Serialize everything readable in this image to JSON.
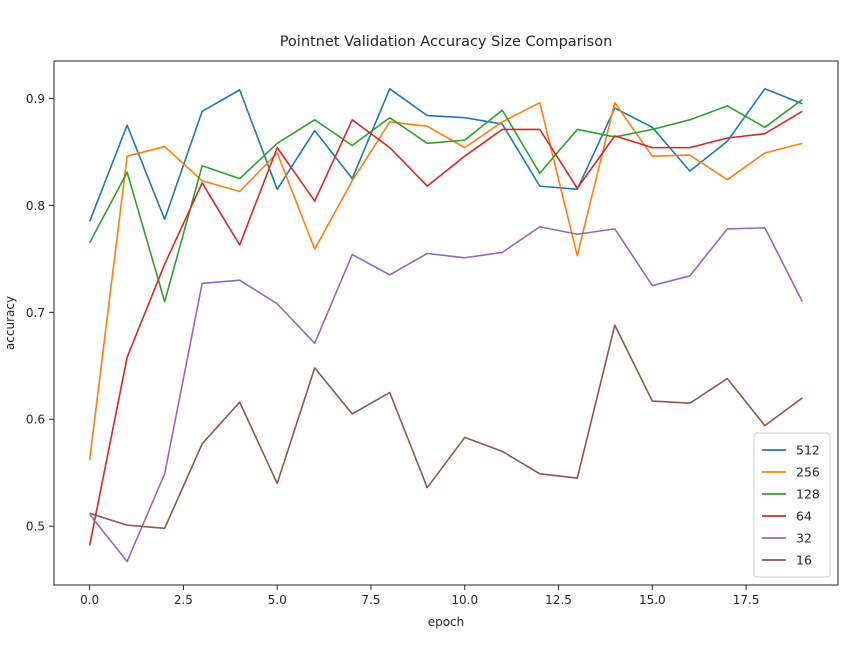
{
  "chart_data": {
    "type": "line",
    "title": "Pointnet Validation Accuracy Size Comparison",
    "xlabel": "epoch",
    "ylabel": "accuracy",
    "xlim": [
      -0.95,
      19.95
    ],
    "ylim": [
      0.445,
      0.935
    ],
    "xticks": [
      0.0,
      2.5,
      5.0,
      7.5,
      10.0,
      12.5,
      15.0,
      17.5
    ],
    "xtick_labels": [
      "0.0",
      "2.5",
      "5.0",
      "7.5",
      "10.0",
      "12.5",
      "15.0",
      "17.5"
    ],
    "yticks": [
      0.5,
      0.6,
      0.7,
      0.8,
      0.9
    ],
    "ytick_labels": [
      "0.5",
      "0.6",
      "0.7",
      "0.8",
      "0.9"
    ],
    "grid": false,
    "legend_position": "lower-right",
    "x": [
      0,
      1,
      2,
      3,
      4,
      5,
      6,
      7,
      8,
      9,
      10,
      11,
      12,
      13,
      14,
      15,
      16,
      17,
      18,
      19
    ],
    "series": [
      {
        "name": "512",
        "color": "#1f77b4",
        "values": [
          0.785,
          0.875,
          0.787,
          0.888,
          0.908,
          0.815,
          0.87,
          0.825,
          0.909,
          0.884,
          0.882,
          0.876,
          0.818,
          0.815,
          0.891,
          0.873,
          0.832,
          0.86,
          0.909,
          0.895
        ]
      },
      {
        "name": "256",
        "color": "#ff7f0e",
        "values": [
          0.562,
          0.846,
          0.855,
          0.823,
          0.813,
          0.849,
          0.759,
          0.823,
          0.878,
          0.874,
          0.854,
          0.878,
          0.896,
          0.753,
          0.896,
          0.846,
          0.847,
          0.824,
          0.849,
          0.858
        ]
      },
      {
        "name": "128",
        "color": "#2ca02c",
        "values": [
          0.765,
          0.831,
          0.71,
          0.837,
          0.825,
          0.858,
          0.88,
          0.856,
          0.882,
          0.858,
          0.861,
          0.889,
          0.83,
          0.871,
          0.864,
          0.871,
          0.88,
          0.893,
          0.873,
          0.899
        ]
      },
      {
        "name": "64",
        "color": "#d62728",
        "values": [
          0.482,
          0.658,
          0.745,
          0.821,
          0.763,
          0.854,
          0.804,
          0.88,
          0.854,
          0.818,
          0.846,
          0.871,
          0.871,
          0.816,
          0.865,
          0.854,
          0.854,
          0.863,
          0.867,
          0.888
        ]
      },
      {
        "name": "32",
        "color": "#9467bd",
        "values": [
          0.511,
          0.467,
          0.549,
          0.727,
          0.73,
          0.708,
          0.671,
          0.754,
          0.735,
          0.755,
          0.751,
          0.756,
          0.78,
          0.773,
          0.778,
          0.725,
          0.734,
          0.778,
          0.779,
          0.71
        ]
      },
      {
        "name": "16",
        "color": "#8c564b",
        "values": [
          0.512,
          0.501,
          0.498,
          0.577,
          0.616,
          0.54,
          0.648,
          0.605,
          0.625,
          0.536,
          0.583,
          0.57,
          0.549,
          0.545,
          0.688,
          0.617,
          0.615,
          0.638,
          0.594,
          0.62
        ]
      }
    ]
  }
}
